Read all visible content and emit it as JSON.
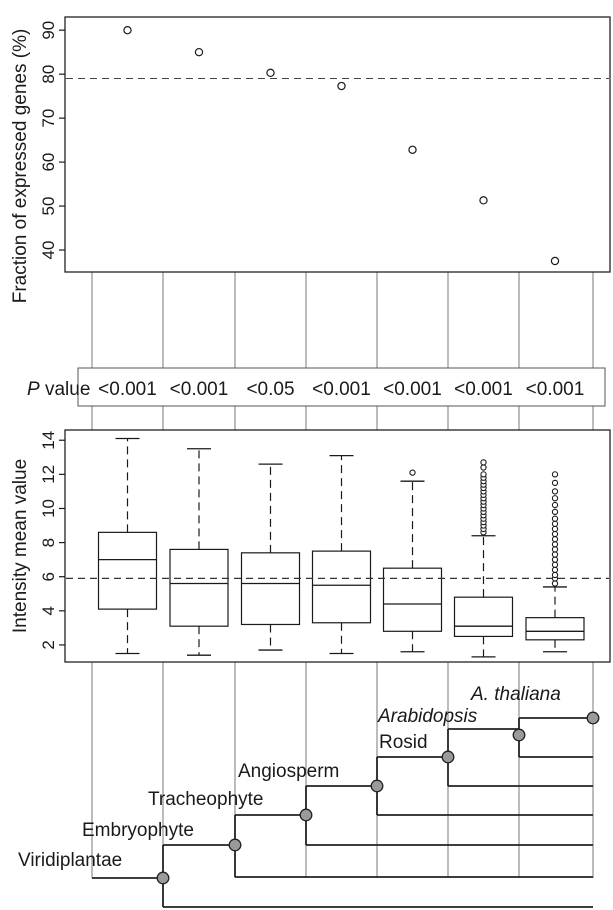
{
  "chart_data": [
    {
      "type": "scatter",
      "ylabel": "Fraction of expressed genes (%)",
      "ylim": [
        35,
        93
      ],
      "yticks": [
        "40",
        "50",
        "60",
        "70",
        "80",
        "90"
      ],
      "reference_line": 79,
      "points": [
        90,
        85,
        80.3,
        77.3,
        62.8,
        51.3,
        37.5
      ]
    },
    {
      "type": "table",
      "label": "P value",
      "label_italic_part": "P",
      "label_rest": " value",
      "values": [
        "<0.001",
        "<0.001",
        "<0.05",
        "<0.001",
        "<0.001",
        "<0.001",
        "<0.001"
      ]
    },
    {
      "type": "box",
      "ylabel": "Intensity mean value",
      "ylim": [
        1,
        14.6
      ],
      "yticks": [
        "2",
        "4",
        "6",
        "8",
        "10",
        "12",
        "14"
      ],
      "reference_line": 5.9,
      "boxes": [
        {
          "whisker_low": 1.5,
          "q1": 4.1,
          "median": 7.0,
          "q3": 8.6,
          "whisker_high": 14.1,
          "outliers": []
        },
        {
          "whisker_low": 1.4,
          "q1": 3.1,
          "median": 5.6,
          "q3": 7.6,
          "whisker_high": 13.5,
          "outliers": []
        },
        {
          "whisker_low": 1.7,
          "q1": 3.2,
          "median": 5.6,
          "q3": 7.4,
          "whisker_high": 12.6,
          "outliers": []
        },
        {
          "whisker_low": 1.5,
          "q1": 3.3,
          "median": 5.5,
          "q3": 7.5,
          "whisker_high": 13.1,
          "outliers": []
        },
        {
          "whisker_low": 1.6,
          "q1": 2.8,
          "median": 4.4,
          "q3": 6.5,
          "whisker_high": 11.6,
          "outliers": [
            12.1
          ]
        },
        {
          "whisker_low": 1.3,
          "q1": 2.5,
          "median": 3.1,
          "q3": 4.8,
          "whisker_high": 8.4,
          "outliers": [
            8.6,
            8.8,
            9.0,
            9.2,
            9.4,
            9.6,
            9.8,
            10.0,
            10.2,
            10.4,
            10.6,
            10.8,
            11.0,
            11.2,
            11.4,
            11.6,
            11.8,
            12.0,
            12.4,
            12.7
          ]
        },
        {
          "whisker_low": 1.6,
          "q1": 2.3,
          "median": 2.8,
          "q3": 3.6,
          "whisker_high": 5.4,
          "outliers": [
            5.6,
            5.9,
            6.1,
            6.4,
            6.7,
            7.0,
            7.3,
            7.6,
            7.9,
            8.2,
            8.5,
            8.8,
            9.1,
            9.4,
            9.8,
            10.2,
            10.6,
            11.0,
            11.5,
            12.0
          ]
        }
      ]
    },
    {
      "type": "tree",
      "labels": [
        {
          "text": "Viridiplantae",
          "italic": false
        },
        {
          "text": "Embryophyte",
          "italic": false
        },
        {
          "text": "Tracheophyte",
          "italic": false
        },
        {
          "text": "Angiosperm",
          "italic": false
        },
        {
          "text": "Rosid",
          "italic": false
        },
        {
          "text": "Arabidopsis",
          "italic": true
        },
        {
          "text": "A. thaliana",
          "italic": true
        }
      ]
    }
  ],
  "colors": {
    "ink": "#1a1a1a",
    "node_fill": "#9a9a9a",
    "panel_border": "#222222"
  }
}
